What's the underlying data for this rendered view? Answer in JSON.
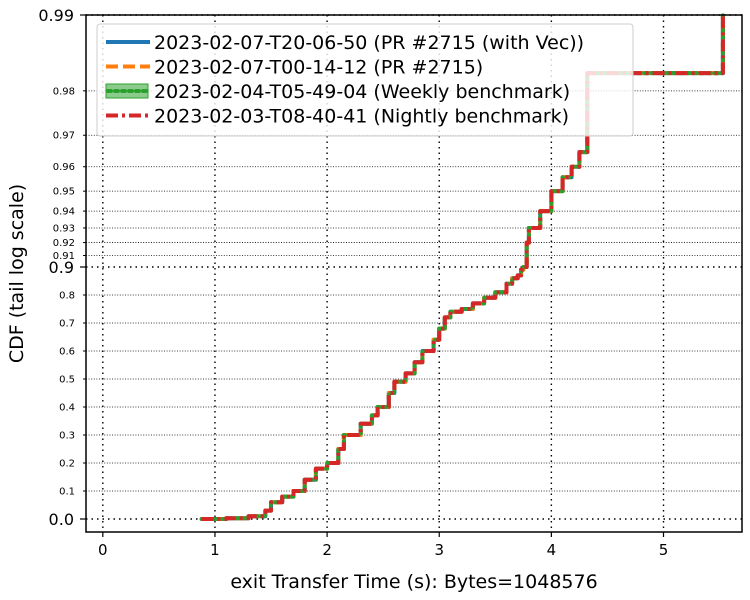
{
  "chart_data": {
    "type": "line",
    "title": "",
    "xlabel": "exit Transfer Time (s): Bytes=1048576",
    "ylabel": "CDF (tail log scale)",
    "xlim": [
      -0.15,
      5.7
    ],
    "x_ticks": [
      "0",
      "1",
      "2",
      "3",
      "4",
      "5"
    ],
    "y_scale": "tail-log",
    "y_major_ticks": [
      "0.0",
      "0.9",
      "0.99"
    ],
    "y_minor_ticks": [
      "0.1",
      "0.2",
      "0.3",
      "0.4",
      "0.5",
      "0.6",
      "0.7",
      "0.8",
      "0.91",
      "0.92",
      "0.93",
      "0.94",
      "0.95",
      "0.96",
      "0.97",
      "0.98"
    ],
    "grid": true,
    "legend_position": "top-left",
    "series": [
      {
        "name": "2023-02-07-T20-06-50 (PR #2715 (with Vec))",
        "color": "#1f77b4",
        "style": "solid"
      },
      {
        "name": "2023-02-07-T00-14-12 (PR #2715)",
        "color": "#ff7f0e",
        "style": "dashed"
      },
      {
        "name": "2023-02-04-T05-49-04 (Weekly benchmark)",
        "color": "#2ca02c",
        "style": "dotted"
      },
      {
        "name": "2023-02-03-T08-40-41 (Nightly benchmark)",
        "color": "#d62728",
        "style": "dashdot"
      }
    ],
    "points": [
      [
        0.88,
        0.0
      ],
      [
        1.1,
        0.003
      ],
      [
        1.3,
        0.01
      ],
      [
        1.45,
        0.03
      ],
      [
        1.5,
        0.06
      ],
      [
        1.6,
        0.08
      ],
      [
        1.7,
        0.1
      ],
      [
        1.8,
        0.14
      ],
      [
        1.9,
        0.18
      ],
      [
        2.0,
        0.2
      ],
      [
        2.1,
        0.25
      ],
      [
        2.15,
        0.3
      ],
      [
        2.3,
        0.34
      ],
      [
        2.4,
        0.37
      ],
      [
        2.45,
        0.4
      ],
      [
        2.55,
        0.45
      ],
      [
        2.6,
        0.49
      ],
      [
        2.7,
        0.52
      ],
      [
        2.78,
        0.56
      ],
      [
        2.85,
        0.6
      ],
      [
        2.95,
        0.64
      ],
      [
        3.0,
        0.68
      ],
      [
        3.05,
        0.72
      ],
      [
        3.1,
        0.74
      ],
      [
        3.2,
        0.75
      ],
      [
        3.3,
        0.77
      ],
      [
        3.4,
        0.79
      ],
      [
        3.5,
        0.81
      ],
      [
        3.6,
        0.84
      ],
      [
        3.65,
        0.86
      ],
      [
        3.7,
        0.87
      ],
      [
        3.73,
        0.89
      ],
      [
        3.75,
        0.9
      ],
      [
        3.78,
        0.92
      ],
      [
        3.8,
        0.93
      ],
      [
        3.9,
        0.94
      ],
      [
        4.0,
        0.95
      ],
      [
        4.1,
        0.956
      ],
      [
        4.18,
        0.96
      ],
      [
        4.25,
        0.965
      ],
      [
        4.32,
        0.983
      ],
      [
        5.0,
        0.983
      ],
      [
        5.52,
        0.983
      ],
      [
        5.53,
        0.99
      ]
    ]
  }
}
